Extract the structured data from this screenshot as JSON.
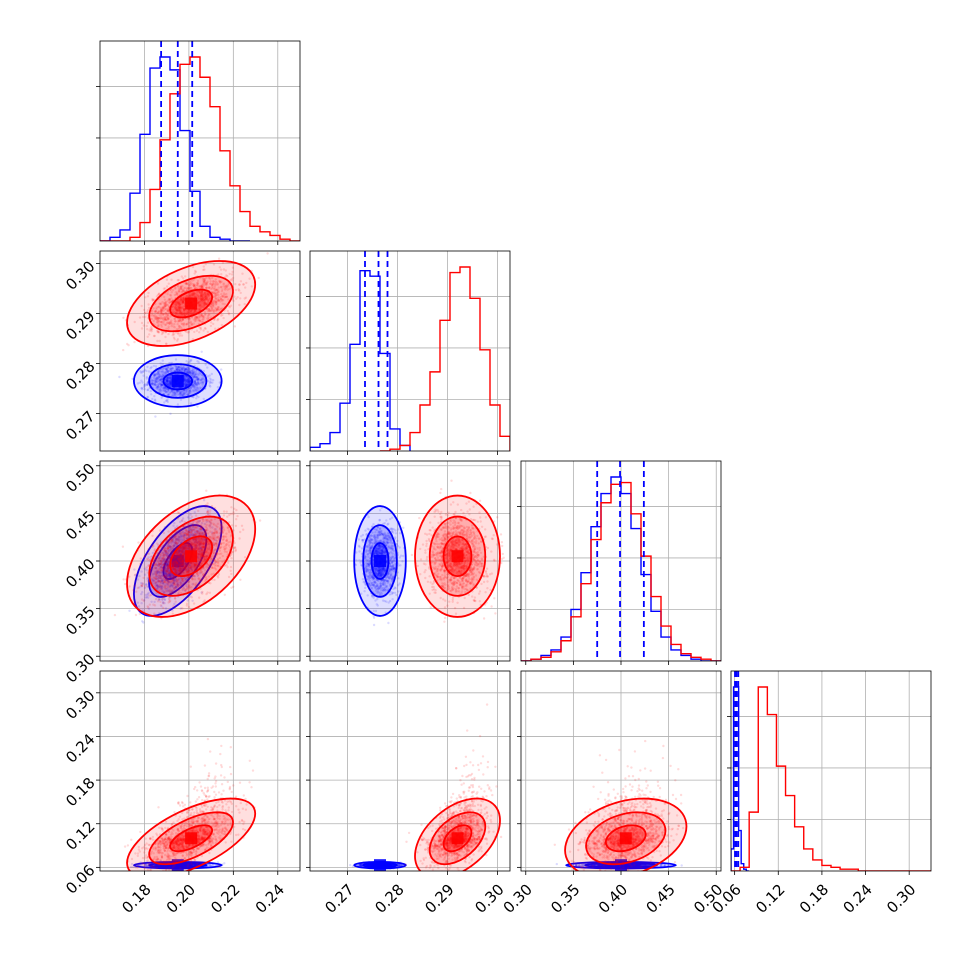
{
  "chart_data": {
    "type": "scatter",
    "subtype": "corner-plot",
    "title": "",
    "n_parameters": 4,
    "axis_labels": [
      "",
      "",
      "",
      ""
    ],
    "grid": true,
    "parameters": [
      {
        "index": 0,
        "range": [
          0.16,
          0.25
        ],
        "ticks": [
          0.18,
          0.2,
          0.22,
          0.24
        ],
        "tick_labels": [
          "0.18",
          "0.20",
          "0.22",
          "0.24"
        ]
      },
      {
        "index": 1,
        "range": [
          0.2625,
          0.3025
        ],
        "ticks": [
          0.27,
          0.28,
          0.29,
          0.3
        ],
        "tick_labels": [
          "0.27",
          "0.28",
          "0.29",
          "0.30"
        ]
      },
      {
        "index": 2,
        "range": [
          0.295,
          0.505
        ],
        "ticks": [
          0.3,
          0.35,
          0.4,
          0.45,
          0.5
        ],
        "tick_labels": [
          "0.30",
          "0.35",
          "0.40",
          "0.45",
          "0.50"
        ]
      },
      {
        "index": 3,
        "range": [
          0.055,
          0.33
        ],
        "ticks": [
          0.06,
          0.12,
          0.18,
          0.24,
          0.3
        ],
        "tick_labels": [
          "0.06",
          "0.12",
          "0.18",
          "0.24",
          "0.30"
        ]
      }
    ],
    "series": [
      {
        "name": "blue",
        "color": "#0000ff",
        "means": [
          0.195,
          0.2765,
          0.4,
          0.063
        ],
        "sigmas": [
          0.0065,
          0.0017,
          0.019,
          0.0015
        ],
        "correlations": [
          [
            0,
            1,
            0.0
          ],
          [
            0,
            2,
            0.6
          ],
          [
            0,
            3,
            0.0
          ],
          [
            1,
            2,
            0.0
          ],
          [
            1,
            3,
            0.0
          ],
          [
            2,
            3,
            0.0
          ]
        ],
        "quantile_lines": [
          [
            0.1875,
            0.195,
            0.2015
          ],
          [
            0.2735,
            0.2762,
            0.278
          ],
          [
            0.375,
            0.399,
            0.424
          ],
          [
            0.0605,
            0.0625,
            0.065
          ]
        ]
      },
      {
        "name": "red",
        "color": "#ff0000",
        "means": [
          0.201,
          0.292,
          0.405,
          0.1
        ],
        "sigmas": [
          0.0095,
          0.0028,
          0.021,
          0.018
        ],
        "correlations": [
          [
            0,
            1,
            0.45
          ],
          [
            0,
            2,
            0.45
          ],
          [
            0,
            3,
            0.62
          ],
          [
            1,
            2,
            0.0
          ],
          [
            1,
            3,
            0.45
          ],
          [
            2,
            3,
            0.3
          ]
        ]
      }
    ],
    "histograms": [
      {
        "param": 0,
        "series": "blue",
        "edges": [
          0.16,
          0.1645,
          0.169,
          0.1735,
          0.178,
          0.1825,
          0.187,
          0.1915,
          0.196,
          0.2005,
          0.205,
          0.2095,
          0.214,
          0.2185,
          0.223,
          0.2275
        ],
        "counts": [
          0,
          2,
          6,
          26,
          58,
          94,
          100,
          93,
          60,
          27,
          8,
          2,
          1,
          0,
          0
        ]
      },
      {
        "param": 0,
        "series": "red",
        "edges": [
          0.16,
          0.1645,
          0.169,
          0.1735,
          0.178,
          0.1825,
          0.187,
          0.1915,
          0.196,
          0.2005,
          0.205,
          0.2095,
          0.214,
          0.2185,
          0.223,
          0.2275,
          0.232,
          0.2365,
          0.241,
          0.2455,
          0.25
        ],
        "counts": [
          0,
          0,
          0,
          2,
          10,
          28,
          55,
          80,
          96,
          100,
          89,
          73,
          49,
          30,
          16,
          8,
          5,
          3,
          1,
          0
        ]
      },
      {
        "param": 1,
        "series": "blue",
        "edges": [
          0.2625,
          0.2645,
          0.2665,
          0.2685,
          0.2705,
          0.2725,
          0.2745,
          0.2765,
          0.2785,
          0.2805,
          0.2825
        ],
        "counts": [
          2,
          4,
          10,
          26,
          58,
          98,
          95,
          53,
          12,
          3
        ]
      },
      {
        "param": 1,
        "series": "red",
        "edges": [
          0.2765,
          0.2785,
          0.2805,
          0.2825,
          0.2845,
          0.2865,
          0.2885,
          0.2905,
          0.2925,
          0.2945,
          0.2965,
          0.2985,
          0.3005,
          0.3025
        ],
        "counts": [
          0,
          1,
          3,
          10,
          25,
          43,
          71,
          97,
          100,
          83,
          55,
          25,
          8
        ]
      },
      {
        "param": 2,
        "series": "blue",
        "edges": [
          0.295,
          0.3055,
          0.316,
          0.3265,
          0.337,
          0.3475,
          0.358,
          0.3685,
          0.379,
          0.3895,
          0.4,
          0.4105,
          0.421,
          0.4315,
          0.442,
          0.4525,
          0.463,
          0.4735,
          0.484,
          0.4945,
          0.505
        ],
        "counts": [
          0,
          1,
          3,
          6,
          13,
          28,
          48,
          73,
          91,
          100,
          91,
          72,
          47,
          27,
          13,
          6,
          3,
          1,
          0,
          0
        ]
      },
      {
        "param": 2,
        "series": "red",
        "edges": [
          0.295,
          0.3055,
          0.316,
          0.3265,
          0.337,
          0.3475,
          0.358,
          0.3685,
          0.379,
          0.3895,
          0.4,
          0.4105,
          0.421,
          0.4315,
          0.442,
          0.4525,
          0.463,
          0.4735,
          0.484,
          0.4945,
          0.505
        ],
        "counts": [
          0,
          1,
          2,
          5,
          11,
          24,
          42,
          66,
          86,
          96,
          97,
          80,
          57,
          35,
          19,
          9,
          4,
          2,
          1,
          0
        ]
      },
      {
        "param": 3,
        "series": "blue",
        "edges": [
          0.055,
          0.0585,
          0.062,
          0.0655,
          0.069,
          0.0725,
          0.076,
          0.0795
        ],
        "counts": [
          12,
          100,
          100,
          22,
          4,
          1,
          0
        ]
      },
      {
        "param": 3,
        "series": "red",
        "edges": [
          0.055,
          0.0675,
          0.08,
          0.0925,
          0.105,
          0.1175,
          0.13,
          0.1425,
          0.155,
          0.1675,
          0.18,
          0.1925,
          0.205,
          0.2175,
          0.23,
          0.2425,
          0.255,
          0.2675,
          0.28,
          0.2925,
          0.305,
          0.3175,
          0.33
        ],
        "counts": [
          0,
          2,
          32,
          100,
          85,
          57,
          41,
          24,
          12,
          6,
          3,
          2,
          1,
          1,
          0,
          0,
          0,
          0,
          0,
          0,
          0,
          0
        ]
      }
    ],
    "contour_levels": [
      0.39,
      0.86,
      0.99
    ]
  }
}
